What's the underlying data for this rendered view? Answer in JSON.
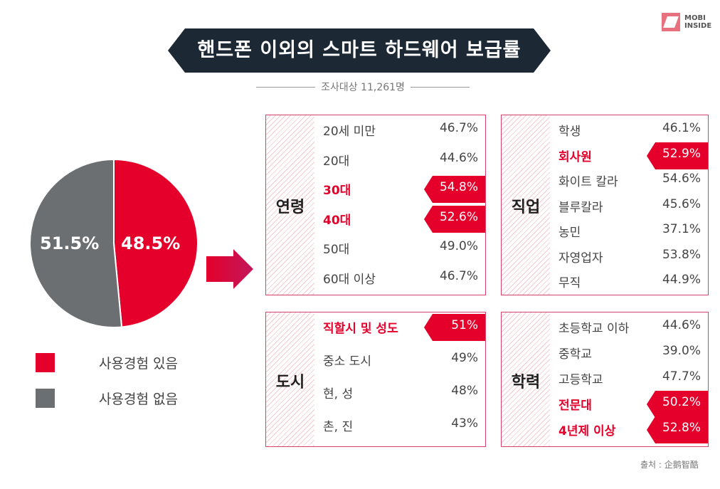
{
  "title": "핸드폰 이외의 스마트 하드웨어 보급률",
  "subtitle": "조사대상 11,261명",
  "logo": {
    "line1": "MOBI",
    "line2": "INSIDE"
  },
  "source": "출처 : 企鹅智酷",
  "colors": {
    "accent": "#e4002b",
    "grey": "#6b6f72",
    "navy": "#1c2833",
    "hatch": "#f6c9d3"
  },
  "chart_data": [
    {
      "type": "pie",
      "slices": [
        {
          "name": "사용경험 있음",
          "value": 48.5,
          "label": "48.5%",
          "color": "#e4002b"
        },
        {
          "name": "사용경험 없음",
          "value": 51.5,
          "label": "51.5%",
          "color": "#6b6f72"
        }
      ]
    },
    {
      "type": "table",
      "groups": [
        {
          "category": "연령",
          "rows": [
            {
              "label": "20세 미만",
              "value": "46.7%",
              "highlight": false
            },
            {
              "label": "20대",
              "value": "44.6%",
              "highlight": false
            },
            {
              "label": "30대",
              "value": "54.8%",
              "highlight": true
            },
            {
              "label": "40대",
              "value": "52.6%",
              "highlight": true
            },
            {
              "label": "50대",
              "value": "49.0%",
              "highlight": false
            },
            {
              "label": "60대 이상",
              "value": "46.7%",
              "highlight": false
            }
          ]
        },
        {
          "category": "직업",
          "rows": [
            {
              "label": "학생",
              "value": "46.1%",
              "highlight": false
            },
            {
              "label": "회사원",
              "value": "52.9%",
              "highlight": true
            },
            {
              "label": "화이트 칼라",
              "value": "54.6%",
              "highlight": false
            },
            {
              "label": "블루칼라",
              "value": "45.6%",
              "highlight": false
            },
            {
              "label": "농민",
              "value": "37.1%",
              "highlight": false
            },
            {
              "label": "자영업자",
              "value": "53.8%",
              "highlight": false
            },
            {
              "label": "무직",
              "value": "44.9%",
              "highlight": false
            }
          ]
        },
        {
          "category": "도시",
          "rows": [
            {
              "label": "직할시 및 성도",
              "value": "51%",
              "highlight": true
            },
            {
              "label": "중소 도시",
              "value": "49%",
              "highlight": false
            },
            {
              "label": "현, 성",
              "value": "48%",
              "highlight": false
            },
            {
              "label": "촌, 진",
              "value": "43%",
              "highlight": false
            }
          ]
        },
        {
          "category": "학력",
          "rows": [
            {
              "label": "초등학교 이하",
              "value": "44.6%",
              "highlight": false
            },
            {
              "label": "중학교",
              "value": "39.0%",
              "highlight": false
            },
            {
              "label": "고등학교",
              "value": "47.7%",
              "highlight": false
            },
            {
              "label": "전문대",
              "value": "50.2%",
              "highlight": true
            },
            {
              "label": "4년제 이상",
              "value": "52.8%",
              "highlight": true
            }
          ]
        }
      ]
    }
  ]
}
